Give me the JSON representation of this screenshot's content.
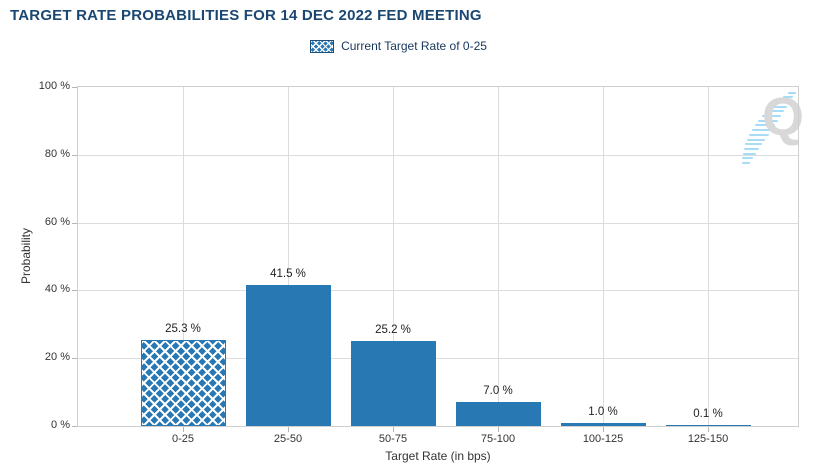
{
  "header": {
    "title": "TARGET RATE PROBABILITIES FOR 14 DEC 2022 FED MEETING"
  },
  "legend": {
    "label": "Current Target Rate of 0-25"
  },
  "watermark": {
    "letter": "Q"
  },
  "colors": {
    "bar_blue": "#2878b4",
    "hatch_lines": "#ffffff",
    "title_navy": "#1b4872",
    "legend_navy": "#17365d",
    "gridline_gray": "#dcdcdc",
    "watermark_gray": "#d8d8d8",
    "watermark_blue": "#a6dcf5"
  },
  "chart_data": {
    "type": "bar",
    "title": "TARGET RATE PROBABILITIES FOR 14 DEC 2022 FED MEETING",
    "categories": [
      "0-25",
      "25-50",
      "50-75",
      "75-100",
      "100-125",
      "125-150"
    ],
    "values": [
      25.3,
      41.5,
      25.2,
      7.0,
      1.0,
      0.1
    ],
    "data_labels": [
      "25.3 %",
      "41.5 %",
      "25.2 %",
      "7.0 %",
      "1.0 %",
      "0.1 %"
    ],
    "hatched_category": "0-25",
    "xlabel": "Target Rate (in bps)",
    "ylabel": "Probability",
    "ylim": [
      0,
      100
    ],
    "ytick_values": [
      0,
      20,
      40,
      60,
      80,
      100
    ],
    "ytick_labels": [
      "0 %",
      "20 %",
      "40 %",
      "60 %",
      "80 %",
      "100 %"
    ],
    "grid": true,
    "legend_position": "top",
    "legend_entries": [
      "Current Target Rate of 0-25"
    ]
  }
}
